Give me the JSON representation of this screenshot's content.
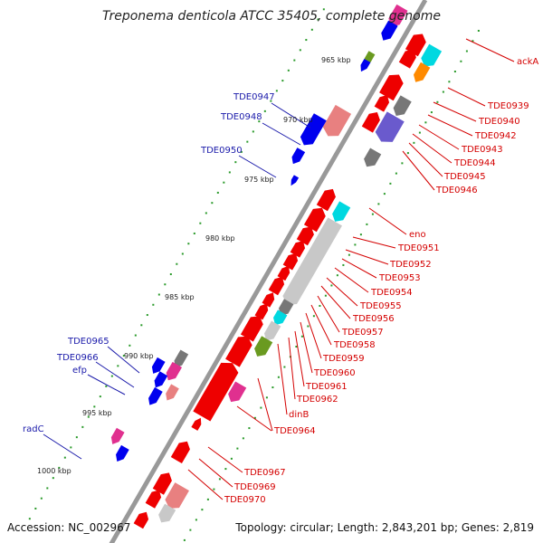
{
  "title": "Treponema denticola ATCC 35405, complete genome",
  "accession": "Accession: NC_002967",
  "topology": "Topology: circular; Length: 2,843,201 bp; Genes: 2,819",
  "colors": {
    "backbone": "#999999",
    "red": "#ee0000",
    "blue": "#0000ee",
    "cyan": "#00d8e0",
    "magenta": "#e0308f",
    "gray": "#777777",
    "olive": "#6a9a20",
    "orange": "#ff8a00",
    "purple": "#6a5acd",
    "pink": "#e88080",
    "lightgray": "#c8c8c8",
    "dots": "#2a9a2a",
    "red_label": "#d40000",
    "blue_label": "#1a1aaa"
  },
  "kbp_labels": [
    "965 kbp",
    "970 kbp",
    "975 kbp",
    "980 kbp",
    "985 kbp",
    "990 kbp",
    "995 kbp",
    "1000 kbp"
  ],
  "genes_right": [
    "ackA",
    "TDE0939",
    "TDE0940",
    "TDE0942",
    "TDE0943",
    "TDE0944",
    "TDE0945",
    "TDE0946",
    "eno",
    "TDE0951",
    "TDE0952",
    "TDE0953",
    "TDE0954",
    "TDE0955",
    "TDE0956",
    "TDE0957",
    "TDE0958",
    "TDE0959",
    "TDE0960",
    "TDE0961",
    "TDE0962",
    "dinB",
    "TDE0964",
    "TDE0967",
    "TDE0969",
    "TDE0970"
  ],
  "genes_left": [
    "TDE0947",
    "TDE0948",
    "TDE0950",
    "TDE0965",
    "TDE0966",
    "efp",
    "radC"
  ]
}
